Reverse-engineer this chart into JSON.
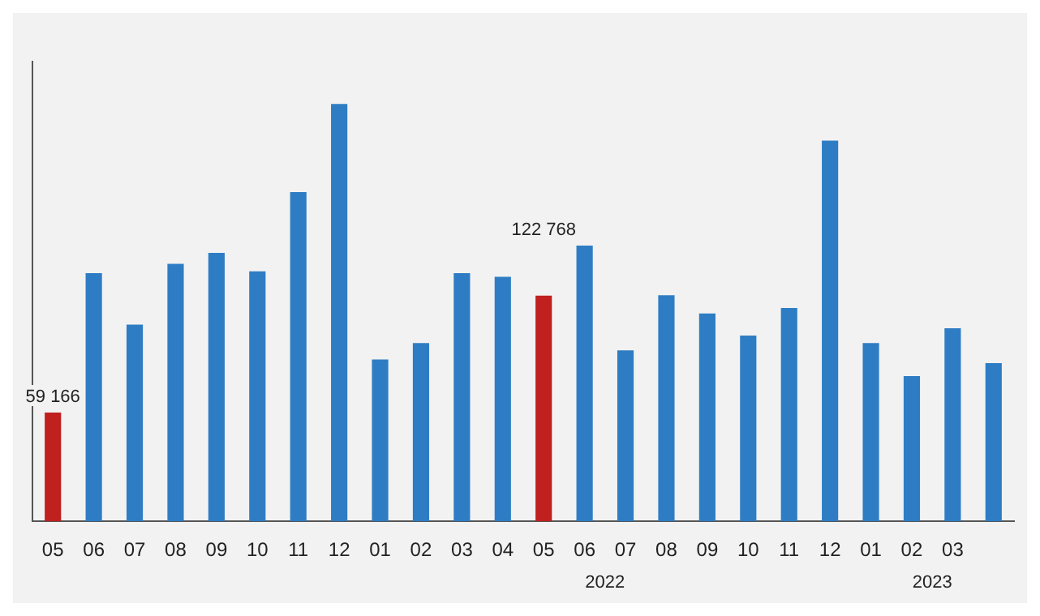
{
  "chart_data": {
    "type": "bar",
    "categories": [
      "05",
      "06",
      "07",
      "08",
      "09",
      "10",
      "11",
      "12",
      "01",
      "02",
      "03",
      "04",
      "05",
      "06",
      "07",
      "08",
      "09",
      "10",
      "11",
      "12",
      "01",
      "02",
      "03",
      null
    ],
    "values": [
      59166,
      135000,
      107000,
      140000,
      146000,
      136000,
      179000,
      227000,
      88000,
      97000,
      135000,
      133000,
      122768,
      150000,
      93000,
      123000,
      113000,
      101000,
      116000,
      207000,
      97000,
      79000,
      105000,
      86000
    ],
    "colors": [
      "#c0201e",
      "#2e7dc4",
      "#2e7dc4",
      "#2e7dc4",
      "#2e7dc4",
      "#2e7dc4",
      "#2e7dc4",
      "#2e7dc4",
      "#2e7dc4",
      "#2e7dc4",
      "#2e7dc4",
      "#2e7dc4",
      "#c0201e",
      "#2e7dc4",
      "#2e7dc4",
      "#2e7dc4",
      "#2e7dc4",
      "#2e7dc4",
      "#2e7dc4",
      "#2e7dc4",
      "#2e7dc4",
      "#2e7dc4",
      "#2e7dc4",
      "#2e7dc4"
    ],
    "value_labels": [
      "59 166",
      null,
      null,
      null,
      null,
      null,
      null,
      null,
      null,
      null,
      null,
      null,
      "122 768",
      null,
      null,
      null,
      null,
      null,
      null,
      null,
      null,
      null,
      null,
      null
    ],
    "annotations": [
      "2022",
      "2023"
    ],
    "grid": false,
    "legend": false,
    "tick_labels": "x"
  }
}
